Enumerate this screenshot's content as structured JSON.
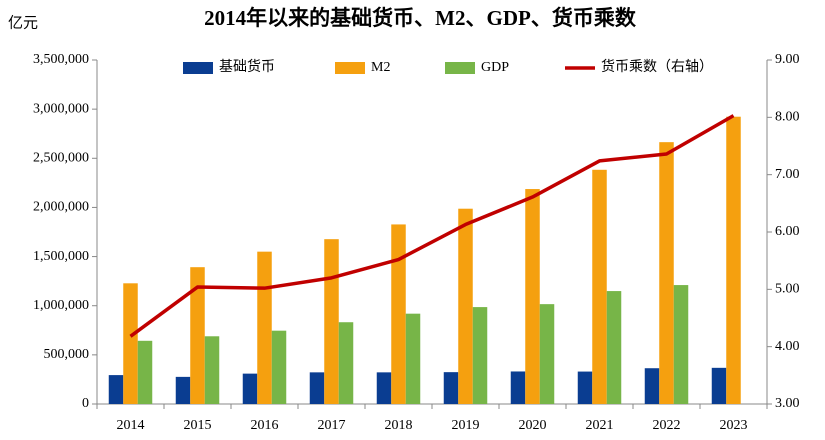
{
  "chart_data": {
    "type": "bar",
    "title": "2014年以来的基础货币、M2、GDP、货币乘数",
    "y_unit": "亿元",
    "categories": [
      "2014",
      "2015",
      "2016",
      "2017",
      "2018",
      "2019",
      "2020",
      "2021",
      "2022",
      "2023"
    ],
    "series": [
      {
        "name": "基础货币",
        "color": "#0a3d91",
        "values": [
          294000,
          276000,
          309000,
          322000,
          322000,
          324000,
          331000,
          330000,
          364000,
          368000
        ]
      },
      {
        "name": "M2",
        "color": "#f5a00f",
        "values": [
          1228000,
          1392000,
          1550000,
          1677000,
          1827000,
          1987000,
          2187000,
          2383000,
          2664000,
          2923000
        ]
      },
      {
        "name": "GDP",
        "color": "#77b548",
        "values": [
          643000,
          689000,
          746000,
          832000,
          919000,
          986000,
          1016000,
          1149000,
          1210000,
          null
        ]
      },
      {
        "name": "货币乘数（右轴）",
        "color": "#c00000",
        "type": "line",
        "axis": "y2",
        "values": [
          4.18,
          5.04,
          5.02,
          5.2,
          5.52,
          6.13,
          6.61,
          7.24,
          7.36,
          8.03
        ]
      }
    ],
    "ylim": [
      0,
      3500000
    ],
    "yticks": [
      0,
      {
        "value": 500000,
        "label": "500,000"
      },
      {
        "value": 1000000,
        "label": "1,000,000"
      },
      {
        "value": 1500000,
        "label": "1,500,000"
      },
      {
        "value": 2000000,
        "label": "2,000,000"
      },
      {
        "value": 2500000,
        "label": "2,500,000"
      },
      {
        "value": 3000000,
        "label": "3,000,000"
      },
      {
        "value": 3500000,
        "label": "3,500,000"
      }
    ],
    "y2lim": [
      3,
      9
    ],
    "y2ticks": [
      {
        "value": 3,
        "label": "3.00"
      },
      {
        "value": 4,
        "label": "4.00"
      },
      {
        "value": 5,
        "label": "5.00"
      },
      {
        "value": 6,
        "label": "6.00"
      },
      {
        "value": 7,
        "label": "7.00"
      },
      {
        "value": 8,
        "label": "8.00"
      },
      {
        "value": 9,
        "label": "9.00"
      }
    ],
    "grid": false,
    "legend": "top"
  }
}
